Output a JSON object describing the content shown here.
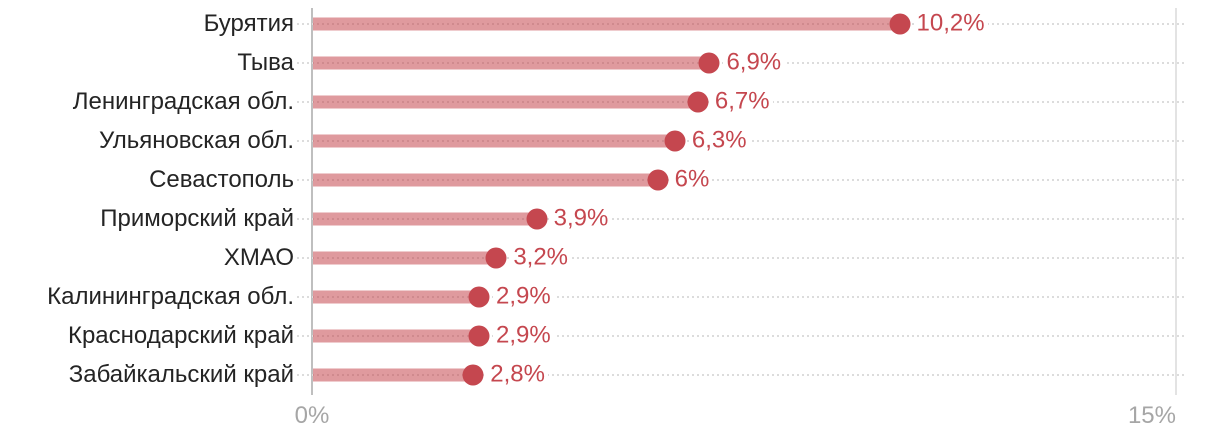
{
  "chart_data": {
    "type": "bar",
    "orientation": "horizontal",
    "title": "",
    "xlabel": "",
    "ylabel": "",
    "xlim": [
      0,
      15
    ],
    "x_ticks": [
      "0%",
      "15%"
    ],
    "grid": "dotted horizontal line per row, vertical lines at 0% and 15%",
    "legend": "none",
    "categories": [
      "Бурятия",
      "Тыва",
      "Ленинградская обл.",
      "Ульяновская обл.",
      "Севастополь",
      "Приморский край",
      "ХМАО",
      "Калининградская обл.",
      "Краснодарский край",
      "Забайкальский край"
    ],
    "values": [
      10.2,
      6.9,
      6.7,
      6.3,
      6,
      3.9,
      3.2,
      2.9,
      2.9,
      2.8
    ],
    "value_labels": [
      "10,2%",
      "6,9%",
      "6,7%",
      "6,3%",
      "6%",
      "3,9%",
      "3,2%",
      "2,9%",
      "2,9%",
      "2,8%"
    ],
    "colors": {
      "bar": "rgba(197,71,79,0.55)",
      "marker": "#c5474f",
      "value_text": "#c5474f",
      "category_text": "#242424",
      "axis_line": "#bfbfbf",
      "max_line": "#e3e3e3",
      "grid_dots": "#dcdcdc",
      "tick_text": "#a6a6a6"
    }
  }
}
